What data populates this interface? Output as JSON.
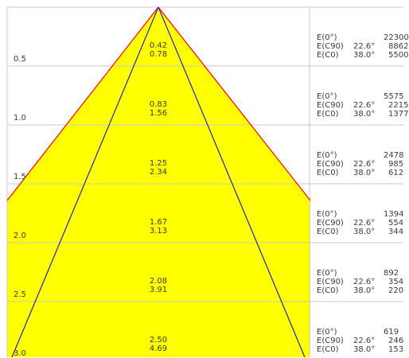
{
  "colors": {
    "fill": "#ffff00",
    "outer_line": "#ff0000",
    "inner_line": "#2323c8",
    "grid": "#c8c8c8",
    "text": "#3a3a3a"
  },
  "rows": [
    {
      "distance": "0.5",
      "size_c90": "0.42",
      "size_c0": "0.78",
      "e0_label": "E(0°)",
      "ec90_label": "E(C90)",
      "ec0_label": "E(C0)",
      "ec90_angle": "22.6°",
      "ec0_angle": "38.0°",
      "e0_value": "22300",
      "ec90_value": "8862",
      "ec0_value": "5500"
    },
    {
      "distance": "1.0",
      "size_c90": "0.83",
      "size_c0": "1.56",
      "e0_label": "E(0°)",
      "ec90_label": "E(C90)",
      "ec0_label": "E(C0)",
      "ec90_angle": "22.6°",
      "ec0_angle": "38.0°",
      "e0_value": "5575",
      "ec90_value": "2215",
      "ec0_value": "1377"
    },
    {
      "distance": "1.5",
      "size_c90": "1.25",
      "size_c0": "2.34",
      "e0_label": "E(0°)",
      "ec90_label": "E(C90)",
      "ec0_label": "E(C0)",
      "ec90_angle": "22.6°",
      "ec0_angle": "38.0°",
      "e0_value": "2478",
      "ec90_value": "985",
      "ec0_value": "612"
    },
    {
      "distance": "2.0",
      "size_c90": "1.67",
      "size_c0": "3.13",
      "e0_label": "E(0°)",
      "ec90_label": "E(C90)",
      "ec0_label": "E(C0)",
      "ec90_angle": "22.6°",
      "ec0_angle": "38.0°",
      "e0_value": "1394",
      "ec90_value": "554",
      "ec0_value": "344"
    },
    {
      "distance": "2.5",
      "size_c90": "2.08",
      "size_c0": "3.91",
      "e0_label": "E(0°)",
      "ec90_label": "E(C90)",
      "ec0_label": "E(C0)",
      "ec90_angle": "22.6°",
      "ec0_angle": "38.0°",
      "e0_value": "892",
      "ec90_value": "354",
      "ec0_value": "220"
    },
    {
      "distance": "3.0",
      "size_c90": "2.50",
      "size_c0": "4.69",
      "e0_label": "E(0°)",
      "ec90_label": "E(C90)",
      "ec0_label": "E(C0)",
      "ec90_angle": "22.6°",
      "ec0_angle": "38.0°",
      "e0_value": "619",
      "ec90_value": "246",
      "ec0_value": "153"
    }
  ]
}
